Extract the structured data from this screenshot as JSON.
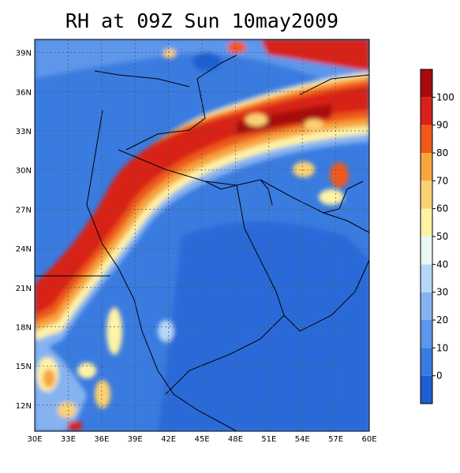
{
  "title": "RH at 09Z Sun 10may2009",
  "map": {
    "lon_range": [
      30,
      60
    ],
    "lat_range": [
      10,
      40
    ],
    "lon_ticks": [
      "30E",
      "33E",
      "36E",
      "39E",
      "42E",
      "45E",
      "48E",
      "51E",
      "54E",
      "57E",
      "60E"
    ],
    "lat_ticks": [
      "12N",
      "15N",
      "18N",
      "21N",
      "24N",
      "27N",
      "30N",
      "33N",
      "36N",
      "39N"
    ],
    "grid": true,
    "grid_style": "dashed"
  },
  "colorbar": {
    "position": "right",
    "labels": [
      "0",
      "10",
      "20",
      "30",
      "40",
      "50",
      "60",
      "70",
      "80",
      "90",
      "100"
    ],
    "colors": [
      "#1e5fd0",
      "#3a7be0",
      "#5d96ea",
      "#86b3f0",
      "#b6d8f6",
      "#e9f8f4",
      "#fff3a5",
      "#fbd273",
      "#f7a53d",
      "#ef5a1a",
      "#d82018",
      "#a80b0b"
    ]
  }
}
